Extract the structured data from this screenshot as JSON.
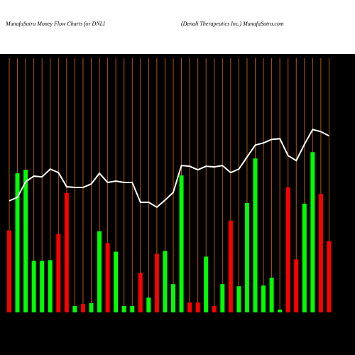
{
  "chart_data": {
    "type": "bar",
    "title": "MunafaSutra  Money Flow  Charts for DNLI",
    "subtitle": "(Denali   Therapeutics Inc.) MunafaSutra.com",
    "values": [
      116,
      197,
      202,
      73,
      73,
      74,
      111,
      169,
      9,
      12,
      13,
      115,
      98,
      86,
      9,
      9,
      56,
      21,
      83,
      87,
      40,
      194,
      14,
      14,
      79,
      9,
      40,
      130,
      37,
      155,
      218,
      38,
      49,
      4,
      177,
      75,
      154,
      227,
      168,
      101
    ],
    "bar_colors": [
      "red",
      "lime",
      "lime",
      "lime",
      "lime",
      "lime",
      "red",
      "red",
      "lime",
      "red",
      "lime",
      "lime",
      "red",
      "lime",
      "lime",
      "lime",
      "red",
      "lime",
      "red",
      "lime",
      "lime",
      "lime",
      "red",
      "red",
      "lime",
      "red",
      "lime",
      "red",
      "lime",
      "lime",
      "lime",
      "lime",
      "lime",
      "lime",
      "red",
      "red",
      "lime",
      "lime",
      "red",
      "red"
    ],
    "line": {
      "color": "#ffffff",
      "values": [
        158,
        163,
        185,
        193,
        192,
        203,
        198,
        178,
        177,
        177,
        182,
        197,
        184,
        186,
        184,
        184,
        156,
        156,
        149,
        159,
        170,
        208,
        207,
        202,
        207,
        206,
        208,
        198,
        203,
        220,
        237,
        240,
        245,
        246,
        222,
        215,
        238,
        259,
        256,
        250
      ]
    },
    "grid_color": "#b35900",
    "ylim": [
      0,
      360
    ]
  }
}
